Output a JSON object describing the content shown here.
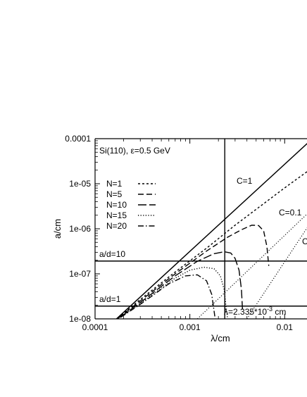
{
  "chart_data": {
    "type": "line",
    "title": "Si(110), ε=0.5 GeV",
    "xlabel": "λ/cm",
    "ylabel": "a/cm",
    "xscale": "log",
    "yscale": "log",
    "xlim": [
      0.0001,
      0.0175
    ],
    "ylim": [
      1e-08,
      0.0001
    ],
    "grid": false,
    "legend_position": "top-left",
    "x_ticks": [
      {
        "value": 0.0001,
        "label": "0.0001"
      },
      {
        "value": 0.001,
        "label": "0.001"
      },
      {
        "value": 0.01,
        "label": "0.01"
      }
    ],
    "y_ticks": [
      {
        "value": 1e-08,
        "label": "1e-08"
      },
      {
        "value": 1e-07,
        "label": "1e-07"
      },
      {
        "value": 1e-06,
        "label": "1e-06"
      },
      {
        "value": 1e-05,
        "label": "1e-05"
      },
      {
        "value": 0.0001,
        "label": "0.0001"
      }
    ],
    "series": [
      {
        "name": "N=1",
        "style": "short-dash",
        "x": [
          0.00015,
          0.0003,
          0.0007,
          0.0015,
          0.003,
          0.006,
          0.01,
          0.0175
        ],
        "y": [
          8e-09,
          2.7e-08,
          1.1e-07,
          3.7e-07,
          1.2e-06,
          3.6e-06,
          8.1e-06,
          1.9e-05
        ]
      },
      {
        "name": "N=5",
        "style": "dash",
        "x": [
          0.00015,
          0.0003,
          0.0007,
          0.0015,
          0.0025,
          0.0035,
          0.0045,
          0.0053,
          0.006,
          0.0065,
          0.0068
        ],
        "y": [
          8e-09,
          2.5e-08,
          1e-07,
          3.2e-07,
          6.5e-07,
          9.5e-07,
          1.2e-06,
          1.18e-06,
          9e-07,
          4e-07,
          1.5e-07
        ]
      },
      {
        "name": "N=10",
        "style": "long-dash",
        "x": [
          0.00015,
          0.0003,
          0.0007,
          0.0012,
          0.0018,
          0.0023,
          0.0027,
          0.003,
          0.0033,
          0.0035,
          0.0036
        ],
        "y": [
          8e-09,
          2.3e-08,
          9e-08,
          1.9e-07,
          2.8e-07,
          3.1e-07,
          2.9e-07,
          2.2e-07,
          1.2e-07,
          4.5e-08,
          1.5e-08
        ]
      },
      {
        "name": "N=15",
        "style": "dot",
        "x": [
          0.00015,
          0.0003,
          0.0007,
          0.001,
          0.0014,
          0.0018,
          0.0021,
          0.0023,
          0.0024,
          0.0025
        ],
        "y": [
          8e-09,
          2.2e-08,
          8e-08,
          1.2e-07,
          1.4e-07,
          1.3e-07,
          9e-08,
          4.5e-08,
          2e-08,
          1e-08
        ]
      },
      {
        "name": "N=20",
        "style": "dash-dot",
        "x": [
          0.00015,
          0.0003,
          0.0006,
          0.0009,
          0.0012,
          0.0015,
          0.0017,
          0.0018,
          0.00185
        ],
        "y": [
          8e-09,
          2.1e-08,
          6e-08,
          9e-08,
          9.5e-08,
          7e-08,
          3.5e-08,
          1.5e-08,
          1e-08
        ]
      }
    ],
    "reference_lines": [
      {
        "label": "C=1",
        "style": "solid",
        "x": [
          0.00015,
          0.0175
        ],
        "y": [
          8e-09,
          8e-05
        ]
      },
      {
        "label": "C=0.1",
        "style": "dot",
        "x": [
          0.0012,
          0.0175
        ],
        "y": [
          1e-08,
          2.2e-06
        ]
      },
      {
        "label": "C",
        "style": "dot",
        "x": [
          0.004,
          0.0175
        ],
        "y": [
          1e-08,
          1.1e-06
        ]
      }
    ],
    "horizontal_lines": [
      {
        "label": "a/d=10",
        "y": 1.92e-07
      },
      {
        "label": "a/d=1",
        "y": 1.92e-08
      }
    ],
    "vertical_lines": [
      {
        "label": "λ=2.335*10⁻³ cm",
        "label_main": "λ=2.335*10",
        "label_exp": "-3",
        "label_unit": " cm",
        "x": 0.002335
      }
    ]
  }
}
